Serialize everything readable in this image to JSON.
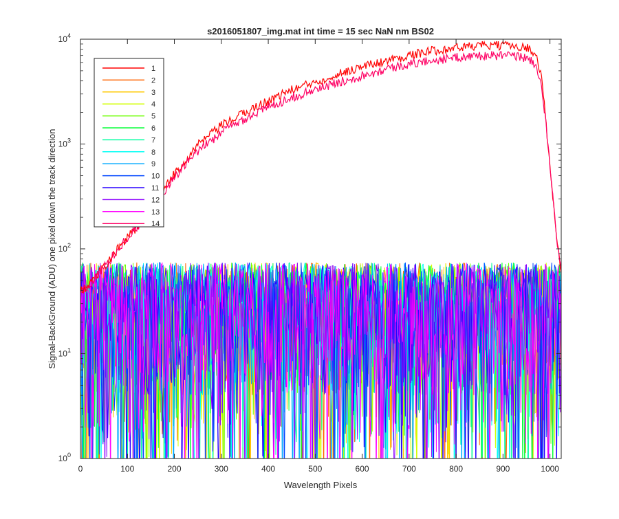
{
  "chart_data": {
    "type": "line",
    "title": "s2016051807_img.mat int time = 15 sec  NaN nm BS02",
    "xlabel": "Wavelength Pixels",
    "ylabel": "Signal-BackGround (ADU) one pixel down the track direction",
    "xlim": [
      0,
      1024
    ],
    "ylim": [
      1,
      10000
    ],
    "yscale": "log",
    "xticks": [
      0,
      100,
      200,
      300,
      400,
      500,
      600,
      700,
      800,
      900,
      1000
    ],
    "xtick_labels": [
      "0",
      "100",
      "200",
      "300",
      "400",
      "500",
      "600",
      "700",
      "800",
      "900",
      "1000"
    ],
    "yticks": [
      1,
      10,
      100,
      1000,
      10000
    ],
    "ytick_labels": [
      {
        "base": "10",
        "exp": "0"
      },
      {
        "base": "10",
        "exp": "1"
      },
      {
        "base": "10",
        "exp": "2"
      },
      {
        "base": "10",
        "exp": "3"
      },
      {
        "base": "10",
        "exp": "4"
      }
    ],
    "grid": false,
    "legend_position": "top-left",
    "series": [
      {
        "name": "1",
        "color": "#ff0000",
        "kind": "signal",
        "x": [
          0,
          20,
          40,
          60,
          80,
          100,
          120,
          150,
          180,
          200,
          250,
          300,
          350,
          400,
          450,
          500,
          550,
          600,
          650,
          700,
          750,
          800,
          850,
          900,
          940,
          960,
          970,
          980,
          990,
          1000,
          1010,
          1020,
          1024
        ],
        "y": [
          40,
          45,
          60,
          75,
          100,
          130,
          160,
          260,
          380,
          520,
          980,
          1500,
          2000,
          2600,
          3300,
          3900,
          4700,
          5500,
          6200,
          7000,
          7800,
          8300,
          8700,
          8700,
          8600,
          8000,
          7000,
          5000,
          2000,
          600,
          200,
          80,
          60
        ]
      },
      {
        "name": "2",
        "color": "#ff6400",
        "kind": "noise"
      },
      {
        "name": "3",
        "color": "#ffc800",
        "kind": "noise"
      },
      {
        "name": "4",
        "color": "#d2ff00",
        "kind": "noise"
      },
      {
        "name": "5",
        "color": "#6eff00",
        "kind": "noise"
      },
      {
        "name": "6",
        "color": "#0aff3c",
        "kind": "noise"
      },
      {
        "name": "7",
        "color": "#00ffa0",
        "kind": "noise"
      },
      {
        "name": "8",
        "color": "#00fff5",
        "kind": "noise"
      },
      {
        "name": "9",
        "color": "#00aaff",
        "kind": "noise"
      },
      {
        "name": "10",
        "color": "#0046ff",
        "kind": "noise"
      },
      {
        "name": "11",
        "color": "#2800ff",
        "kind": "noise"
      },
      {
        "name": "12",
        "color": "#8c00ff",
        "kind": "noise"
      },
      {
        "name": "13",
        "color": "#ff00ff",
        "kind": "noise"
      },
      {
        "name": "14",
        "color": "#ff0064",
        "kind": "signal",
        "x": [
          0,
          20,
          40,
          60,
          80,
          100,
          120,
          150,
          180,
          200,
          250,
          300,
          350,
          400,
          450,
          500,
          550,
          600,
          650,
          700,
          750,
          800,
          850,
          900,
          940,
          960,
          970,
          980,
          990,
          1000,
          1010,
          1020,
          1024
        ],
        "y": [
          40,
          45,
          60,
          75,
          100,
          130,
          160,
          240,
          360,
          480,
          850,
          1300,
          1750,
          2250,
          2800,
          3300,
          3900,
          4500,
          5200,
          5800,
          6300,
          6700,
          7000,
          7000,
          6800,
          6300,
          5600,
          4000,
          1800,
          600,
          200,
          80,
          60
        ]
      }
    ]
  }
}
